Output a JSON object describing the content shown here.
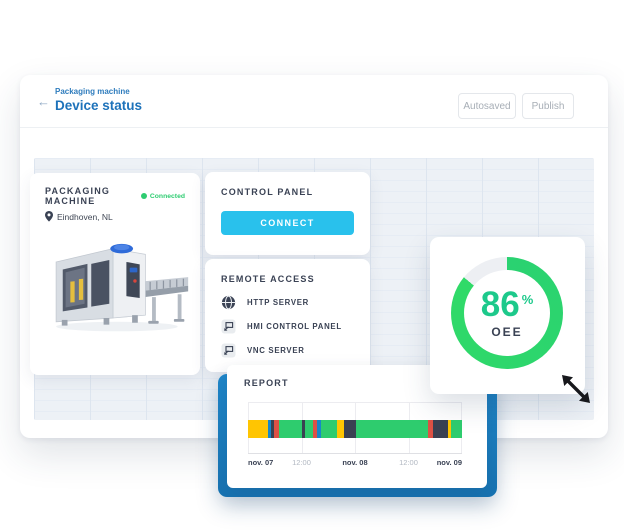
{
  "header": {
    "back_icon": "←",
    "breadcrumb": "Packaging machine",
    "title": "Device status",
    "autosaved_label": "Autosaved",
    "publish_label": "Publish"
  },
  "machine_card": {
    "title": "PACKAGING MACHINE",
    "status_label": "Connected",
    "location": "Eindhoven, NL"
  },
  "control_panel": {
    "title": "CONTROL PANEL",
    "connect_label": "CONNECT"
  },
  "remote_access": {
    "title": "REMOTE ACCESS",
    "items": [
      {
        "icon": "globe-icon",
        "label": "HTTP SERVER"
      },
      {
        "icon": "remote-screen-icon",
        "label": "HMI CONTROL PANEL"
      },
      {
        "icon": "remote-screen-icon",
        "label": "VNC SERVER"
      }
    ]
  },
  "oee": {
    "value": "86",
    "unit": "%",
    "label": "OEE",
    "percent": 86
  },
  "report": {
    "title": "REPORT"
  },
  "chart_data": {
    "type": "bar",
    "subtype": "horizontal-status-timeline",
    "title": "REPORT",
    "x_range": [
      "nov. 07",
      "nov. 09"
    ],
    "x_ticks": [
      {
        "label": "nov. 07",
        "emphasis": true
      },
      {
        "label": "12:00",
        "emphasis": false
      },
      {
        "label": "nov. 08",
        "emphasis": true
      },
      {
        "label": "12:00",
        "emphasis": false
      },
      {
        "label": "nov. 09",
        "emphasis": true
      }
    ],
    "grid": true,
    "status_colors": {
      "green": "#2ecc6e",
      "yellow": "#ffc502",
      "red": "#dd5145",
      "dark": "#3a4152",
      "blue": "#1787c9"
    },
    "segments": [
      {
        "color": "yellow",
        "pct": 9.3
      },
      {
        "color": "blue",
        "pct": 1.4
      },
      {
        "color": "dark",
        "pct": 1.4
      },
      {
        "color": "red",
        "pct": 2.3
      },
      {
        "color": "green",
        "pct": 10.7
      },
      {
        "color": "dark",
        "pct": 1.4
      },
      {
        "color": "green",
        "pct": 3.7
      },
      {
        "color": "red",
        "pct": 1.9
      },
      {
        "color": "blue",
        "pct": 1.9
      },
      {
        "color": "green",
        "pct": 7.5
      },
      {
        "color": "yellow",
        "pct": 3.3
      },
      {
        "color": "dark",
        "pct": 5.6
      },
      {
        "color": "green",
        "pct": 33.6
      },
      {
        "color": "red",
        "pct": 2.3
      },
      {
        "color": "dark",
        "pct": 7.0
      },
      {
        "color": "yellow",
        "pct": 1.4
      },
      {
        "color": "green",
        "pct": 5.3
      }
    ]
  },
  "colors": {
    "accent_blue": "#1d72ba",
    "connect_cyan": "#29c1ec",
    "status_green": "#2ecc71",
    "panel_blue": "#1b80c4",
    "oee_green": "#2ad271"
  }
}
